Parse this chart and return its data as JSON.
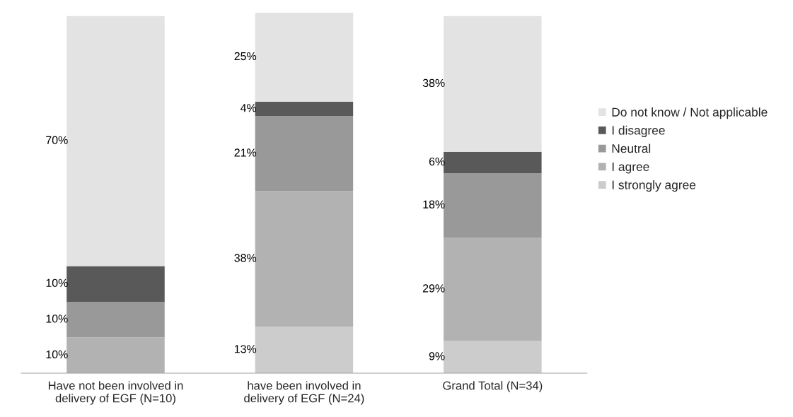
{
  "chart_data": {
    "type": "bar",
    "stacked": true,
    "tick_labels": "x",
    "legend": "right",
    "categories": [
      "Have not been involved in delivery of EGF (N=10)",
      "have been involved in delivery of EGF (N=24)",
      "Grand Total (N=34)"
    ],
    "series": [
      {
        "name": "I strongly agree",
        "color": "#cccccc",
        "values": [
          0,
          13,
          9
        ],
        "value_labels": [
          null,
          "13%",
          "9%"
        ]
      },
      {
        "name": "I agree",
        "color": "#b2b2b2",
        "values": [
          10,
          38,
          29
        ],
        "value_labels": [
          "10%",
          "38%",
          "29%"
        ]
      },
      {
        "name": "Neutral",
        "color": "#999999",
        "values": [
          10,
          21,
          18
        ],
        "value_labels": [
          "10%",
          "21%",
          "18%"
        ]
      },
      {
        "name": "I disagree",
        "color": "#595959",
        "values": [
          10,
          4,
          6
        ],
        "value_labels": [
          "10%",
          "4%",
          "6%"
        ]
      },
      {
        "name": "Do not know / Not applicable",
        "color": "#e3e3e3",
        "values": [
          70,
          25,
          38
        ],
        "value_labels": [
          "70%",
          "25%",
          "38%"
        ]
      }
    ]
  }
}
